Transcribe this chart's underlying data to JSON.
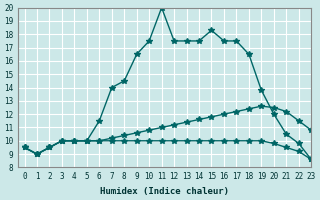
{
  "xlabel": "Humidex (Indice chaleur)",
  "ylabel": "",
  "bg_color": "#cce8e8",
  "line_color": "#006666",
  "grid_color": "#ffffff",
  "xlim": [
    -0.5,
    23
  ],
  "ylim": [
    8,
    20
  ],
  "xticks": [
    0,
    1,
    2,
    3,
    4,
    5,
    6,
    7,
    8,
    9,
    10,
    11,
    12,
    13,
    14,
    15,
    16,
    17,
    18,
    19,
    20,
    21,
    22,
    23
  ],
  "yticks": [
    8,
    9,
    10,
    11,
    12,
    13,
    14,
    15,
    16,
    17,
    18,
    19,
    20
  ],
  "series1_x": [
    0,
    1,
    2,
    3,
    4,
    5,
    6,
    7,
    8,
    9,
    10,
    11,
    12,
    13,
    14,
    15,
    16,
    17,
    18,
    19,
    20,
    21,
    22,
    23
  ],
  "series1_y": [
    9.5,
    9.0,
    9.5,
    10.0,
    10.0,
    10.0,
    11.5,
    14.0,
    14.5,
    16.5,
    17.5,
    20.0,
    17.5,
    17.5,
    17.5,
    18.3,
    17.5,
    17.5,
    16.5,
    13.8,
    12.0,
    10.5,
    9.8,
    8.6
  ],
  "series2_x": [
    0,
    1,
    2,
    3,
    4,
    5,
    6,
    7,
    8,
    9,
    10,
    11,
    12,
    13,
    14,
    15,
    16,
    17,
    18,
    19,
    20,
    21,
    22,
    23
  ],
  "series2_y": [
    9.5,
    9.0,
    9.5,
    10.0,
    10.0,
    10.0,
    10.0,
    10.2,
    10.4,
    10.6,
    10.8,
    11.0,
    11.2,
    11.4,
    11.6,
    11.8,
    12.0,
    12.2,
    12.4,
    12.6,
    12.5,
    12.2,
    11.5,
    10.8
  ],
  "series3_x": [
    0,
    1,
    2,
    3,
    4,
    5,
    6,
    7,
    8,
    9,
    10,
    11,
    12,
    13,
    14,
    15,
    16,
    17,
    18,
    19,
    20,
    21,
    22,
    23
  ],
  "series3_y": [
    9.5,
    9.0,
    9.5,
    10.0,
    10.0,
    10.0,
    10.0,
    10.0,
    10.0,
    10.0,
    10.0,
    10.0,
    10.0,
    10.0,
    10.0,
    10.0,
    10.0,
    10.0,
    10.0,
    10.0,
    9.8,
    9.5,
    9.2,
    8.6
  ]
}
